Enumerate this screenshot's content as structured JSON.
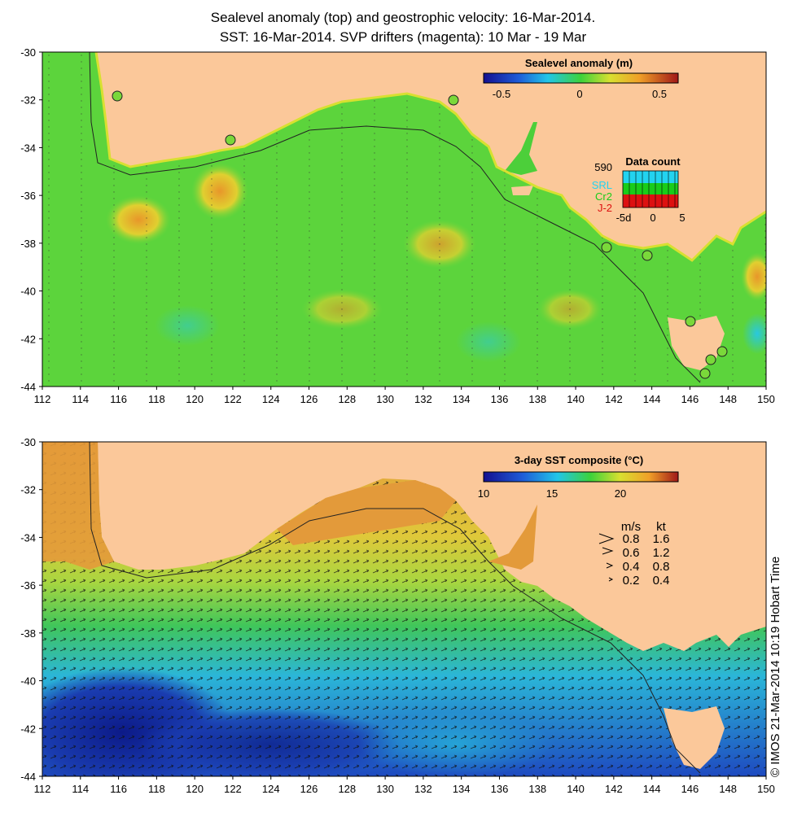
{
  "title_line1": "Sealevel anomaly (top) and geostrophic velocity: 16-Mar-2014.",
  "title_line2": "SST: 16-Mar-2014. SVP drifters (magenta): 10 Mar - 19 Mar",
  "x_ticks": [
    "112",
    "114",
    "116",
    "118",
    "120",
    "122",
    "124",
    "126",
    "128",
    "130",
    "132",
    "134",
    "136",
    "138",
    "140",
    "142",
    "144",
    "146",
    "148",
    "150"
  ],
  "y_ticks": [
    "-30",
    "-32",
    "-34",
    "-36",
    "-38",
    "-40",
    "-42",
    "-44"
  ],
  "top_panel": {
    "colorbar_title": "Sealevel anomaly (m)",
    "colorbar_ticks": [
      "-0.5",
      "0",
      "0.5"
    ],
    "data_count": {
      "title": "Data count",
      "max": "590",
      "series": [
        "SRL",
        "Cr2",
        "J-2"
      ],
      "series_colors": [
        "#22d3f0",
        "#19cc19",
        "#dd1111"
      ],
      "x_ticks": [
        "-5d",
        "0",
        "5"
      ]
    }
  },
  "bottom_panel": {
    "colorbar_title": "3-day SST composite (°C)",
    "colorbar_ticks": [
      "10",
      "15",
      "20"
    ],
    "speed_legend": {
      "header": [
        "m/s",
        "kt"
      ],
      "rows": [
        [
          "0.8",
          "1.6"
        ],
        [
          "0.6",
          "1.2"
        ],
        [
          "0.4",
          "0.8"
        ],
        [
          "0.2",
          "0.4"
        ]
      ]
    }
  },
  "copyright": "© IMOS 21-Mar-2014 10:19 Hobart Time",
  "colors": {
    "land": "#fbc89a",
    "ocean_green": "#4ccf3a",
    "sst_warm": "#e39a3a",
    "sst_cool": "#1d3cb0"
  }
}
